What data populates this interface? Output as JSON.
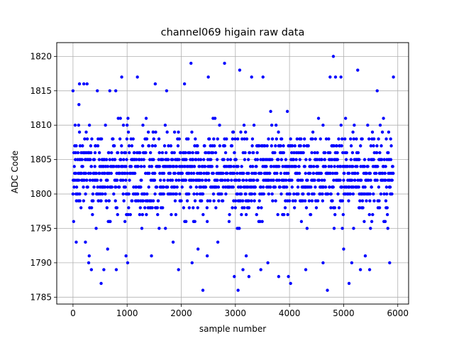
{
  "chart_data": {
    "type": "scatter",
    "title": "channel069 higain raw data",
    "xlabel": "sample number",
    "ylabel": "ADC Code",
    "xlim": [
      -300,
      6200
    ],
    "ylim": [
      1784,
      1822
    ],
    "xticks": [
      0,
      1000,
      2000,
      3000,
      4000,
      5000,
      6000
    ],
    "yticks": [
      1785,
      1790,
      1795,
      1800,
      1805,
      1810,
      1815,
      1820
    ],
    "grid": true,
    "marker_color": "#0000ff",
    "series": [
      {
        "n_samples": 5920,
        "x_range": [
          0,
          5919
        ],
        "dense_band": [
          1795,
          1811
        ],
        "outliers": [
          {
            "x": 0,
            "y": 1815
          },
          {
            "x": 60,
            "y": 1793
          },
          {
            "x": 110,
            "y": 1813
          },
          {
            "x": 120,
            "y": 1816
          },
          {
            "x": 200,
            "y": 1816
          },
          {
            "x": 260,
            "y": 1816
          },
          {
            "x": 230,
            "y": 1793
          },
          {
            "x": 300,
            "y": 1791
          },
          {
            "x": 290,
            "y": 1790
          },
          {
            "x": 340,
            "y": 1789
          },
          {
            "x": 450,
            "y": 1815
          },
          {
            "x": 520,
            "y": 1787
          },
          {
            "x": 570,
            "y": 1789
          },
          {
            "x": 640,
            "y": 1792
          },
          {
            "x": 680,
            "y": 1815
          },
          {
            "x": 790,
            "y": 1815
          },
          {
            "x": 800,
            "y": 1789
          },
          {
            "x": 900,
            "y": 1817
          },
          {
            "x": 980,
            "y": 1791
          },
          {
            "x": 1010,
            "y": 1790
          },
          {
            "x": 1190,
            "y": 1817
          },
          {
            "x": 1450,
            "y": 1791
          },
          {
            "x": 1520,
            "y": 1816
          },
          {
            "x": 1730,
            "y": 1815
          },
          {
            "x": 1850,
            "y": 1793
          },
          {
            "x": 1950,
            "y": 1789
          },
          {
            "x": 2060,
            "y": 1816
          },
          {
            "x": 2180,
            "y": 1819
          },
          {
            "x": 2200,
            "y": 1790
          },
          {
            "x": 2310,
            "y": 1792
          },
          {
            "x": 2400,
            "y": 1786
          },
          {
            "x": 2480,
            "y": 1791
          },
          {
            "x": 2500,
            "y": 1817
          },
          {
            "x": 2800,
            "y": 1819
          },
          {
            "x": 2980,
            "y": 1788
          },
          {
            "x": 3050,
            "y": 1786
          },
          {
            "x": 3080,
            "y": 1818
          },
          {
            "x": 3140,
            "y": 1789
          },
          {
            "x": 3200,
            "y": 1791
          },
          {
            "x": 3250,
            "y": 1788
          },
          {
            "x": 3300,
            "y": 1817
          },
          {
            "x": 3470,
            "y": 1789
          },
          {
            "x": 3510,
            "y": 1817
          },
          {
            "x": 3600,
            "y": 1790
          },
          {
            "x": 3800,
            "y": 1788
          },
          {
            "x": 3980,
            "y": 1788
          },
          {
            "x": 4020,
            "y": 1787
          },
          {
            "x": 4300,
            "y": 1789
          },
          {
            "x": 4620,
            "y": 1790
          },
          {
            "x": 4700,
            "y": 1786
          },
          {
            "x": 4750,
            "y": 1817
          },
          {
            "x": 4810,
            "y": 1820
          },
          {
            "x": 4850,
            "y": 1817
          },
          {
            "x": 4950,
            "y": 1817
          },
          {
            "x": 5000,
            "y": 1792
          },
          {
            "x": 5100,
            "y": 1787
          },
          {
            "x": 5150,
            "y": 1790
          },
          {
            "x": 5260,
            "y": 1818
          },
          {
            "x": 5310,
            "y": 1789
          },
          {
            "x": 5400,
            "y": 1791
          },
          {
            "x": 5480,
            "y": 1789
          },
          {
            "x": 5620,
            "y": 1815
          },
          {
            "x": 5850,
            "y": 1790
          },
          {
            "x": 5920,
            "y": 1817
          }
        ]
      }
    ]
  }
}
